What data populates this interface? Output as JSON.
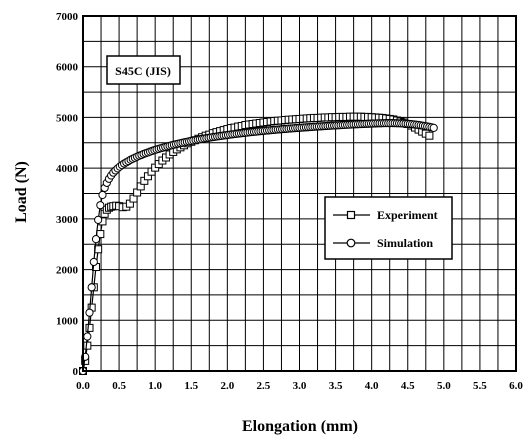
{
  "chart_data": {
    "type": "line",
    "title": "",
    "xlabel": "Elongation (mm)",
    "ylabel": "Load (N)",
    "xlim": [
      0.0,
      6.0
    ],
    "ylim": [
      0,
      7000
    ],
    "xticks": [
      "0.0",
      "0.5",
      "1.0",
      "1.5",
      "2.0",
      "2.5",
      "3.0",
      "3.5",
      "4.0",
      "4.5",
      "5.0",
      "5.5",
      "6.0"
    ],
    "yticks": [
      "0",
      "1000",
      "2000",
      "3000",
      "4000",
      "5000",
      "6000",
      "7000"
    ],
    "grid": true,
    "legend_position": "center-right",
    "annotation": "S45C (JIS)",
    "series": [
      {
        "name": "Experiment",
        "marker": "square",
        "color": "#000000",
        "x": [
          0.0,
          0.03,
          0.06,
          0.09,
          0.12,
          0.15,
          0.18,
          0.21,
          0.24,
          0.27,
          0.3,
          0.33,
          0.36,
          0.39,
          0.42,
          0.46,
          0.5,
          0.55,
          0.6,
          0.65,
          0.7,
          0.75,
          0.8,
          0.85,
          0.9,
          0.95,
          1.0,
          1.05,
          1.1,
          1.15,
          1.2,
          1.25,
          1.3,
          1.35,
          1.4,
          1.45,
          1.5,
          1.55,
          1.6,
          1.65,
          1.7,
          1.75,
          1.8,
          1.85,
          1.9,
          1.95,
          2.0,
          2.05,
          2.1,
          2.15,
          2.2,
          2.25,
          2.3,
          2.35,
          2.4,
          2.45,
          2.5,
          2.55,
          2.6,
          2.65,
          2.7,
          2.75,
          2.8,
          2.85,
          2.9,
          2.95,
          3.0,
          3.05,
          3.1,
          3.15,
          3.2,
          3.25,
          3.3,
          3.35,
          3.4,
          3.45,
          3.5,
          3.55,
          3.6,
          3.65,
          3.7,
          3.75,
          3.8,
          3.85,
          3.9,
          3.95,
          4.0,
          4.05,
          4.1,
          4.15,
          4.2,
          4.25,
          4.3,
          4.35,
          4.4,
          4.45,
          4.5,
          4.55,
          4.6,
          4.65,
          4.7,
          4.75,
          4.8
        ],
        "y": [
          0,
          200,
          500,
          850,
          1250,
          1650,
          2050,
          2400,
          2700,
          2950,
          3100,
          3180,
          3220,
          3240,
          3250,
          3260,
          3250,
          3230,
          3240,
          3300,
          3400,
          3520,
          3640,
          3750,
          3840,
          3930,
          4010,
          4080,
          4150,
          4210,
          4270,
          4320,
          4370,
          4410,
          4450,
          4490,
          4520,
          4550,
          4580,
          4610,
          4640,
          4660,
          4690,
          4710,
          4730,
          4750,
          4770,
          4790,
          4800,
          4820,
          4830,
          4850,
          4860,
          4870,
          4880,
          4890,
          4900,
          4910,
          4920,
          4930,
          4935,
          4940,
          4950,
          4955,
          4960,
          4965,
          4970,
          4975,
          4980,
          4985,
          4990,
          4990,
          4995,
          5000,
          5000,
          5005,
          5005,
          5010,
          5010,
          5010,
          5015,
          5015,
          5015,
          5015,
          5010,
          5010,
          5005,
          5000,
          4995,
          4990,
          4980,
          4970,
          4960,
          4940,
          4920,
          4900,
          4870,
          4840,
          4800,
          4760,
          4720,
          4680,
          4640
        ]
      },
      {
        "name": "Simulation",
        "marker": "circle",
        "color": "#000000",
        "x": [
          0.0,
          0.03,
          0.06,
          0.09,
          0.12,
          0.15,
          0.18,
          0.21,
          0.24,
          0.27,
          0.3,
          0.33,
          0.36,
          0.39,
          0.42,
          0.45,
          0.48,
          0.51,
          0.54,
          0.57,
          0.6,
          0.63,
          0.66,
          0.69,
          0.72,
          0.75,
          0.78,
          0.81,
          0.84,
          0.87,
          0.9,
          0.93,
          0.96,
          0.99,
          1.02,
          1.05,
          1.08,
          1.11,
          1.14,
          1.17,
          1.2,
          1.23,
          1.26,
          1.29,
          1.32,
          1.35,
          1.38,
          1.41,
          1.44,
          1.47,
          1.5,
          1.53,
          1.56,
          1.59,
          1.62,
          1.65,
          1.68,
          1.71,
          1.74,
          1.77,
          1.8,
          1.83,
          1.86,
          1.89,
          1.92,
          1.95,
          1.98,
          2.01,
          2.04,
          2.07,
          2.1,
          2.13,
          2.16,
          2.19,
          2.22,
          2.25,
          2.28,
          2.31,
          2.34,
          2.37,
          2.4,
          2.43,
          2.46,
          2.49,
          2.52,
          2.55,
          2.58,
          2.61,
          2.64,
          2.67,
          2.7,
          2.73,
          2.76,
          2.79,
          2.82,
          2.85,
          2.88,
          2.91,
          2.94,
          2.97,
          3.0,
          3.03,
          3.06,
          3.09,
          3.12,
          3.15,
          3.18,
          3.21,
          3.24,
          3.27,
          3.3,
          3.33,
          3.36,
          3.39,
          3.42,
          3.45,
          3.48,
          3.51,
          3.54,
          3.57,
          3.6,
          3.63,
          3.66,
          3.69,
          3.72,
          3.75,
          3.78,
          3.81,
          3.84,
          3.87,
          3.9,
          3.93,
          3.96,
          3.99,
          4.02,
          4.05,
          4.08,
          4.11,
          4.14,
          4.17,
          4.2,
          4.23,
          4.26,
          4.29,
          4.32,
          4.35,
          4.38,
          4.41,
          4.44,
          4.47,
          4.5,
          4.53,
          4.56,
          4.59,
          4.62,
          4.65,
          4.68,
          4.71,
          4.74,
          4.77,
          4.8,
          4.83,
          4.86
        ],
        "y": [
          0,
          280,
          680,
          1150,
          1650,
          2150,
          2600,
          2980,
          3270,
          3470,
          3610,
          3710,
          3790,
          3855,
          3910,
          3955,
          3995,
          4030,
          4060,
          4090,
          4115,
          4140,
          4165,
          4185,
          4205,
          4225,
          4245,
          4260,
          4280,
          4295,
          4310,
          4325,
          4340,
          4355,
          4368,
          4380,
          4393,
          4405,
          4417,
          4429,
          4440,
          4451,
          4462,
          4472,
          4482,
          4492,
          4501,
          4510,
          4519,
          4528,
          4537,
          4545,
          4553,
          4561,
          4569,
          4577,
          4584,
          4591,
          4598,
          4605,
          4612,
          4618,
          4625,
          4631,
          4637,
          4643,
          4649,
          4655,
          4661,
          4666,
          4672,
          4677,
          4682,
          4687,
          4692,
          4697,
          4702,
          4707,
          4711,
          4716,
          4720,
          4725,
          4729,
          4733,
          4737,
          4741,
          4745,
          4749,
          4753,
          4757,
          4761,
          4764,
          4768,
          4772,
          4775,
          4779,
          4782,
          4785,
          4789,
          4792,
          4795,
          4798,
          4801,
          4804,
          4807,
          4810,
          4813,
          4816,
          4819,
          4822,
          4824,
          4827,
          4830,
          4833,
          4835,
          4838,
          4840,
          4843,
          4845,
          4848,
          4850,
          4853,
          4855,
          4857,
          4860,
          4862,
          4864,
          4866,
          4868,
          4870,
          4872,
          4874,
          4876,
          4878,
          4880,
          4881,
          4883,
          4884,
          4885,
          4886,
          4887,
          4887,
          4887,
          4887,
          4886,
          4885,
          4884,
          4882,
          4880,
          4877,
          4874,
          4870,
          4866,
          4861,
          4856,
          4850,
          4844,
          4837,
          4830,
          4822,
          4813,
          4804,
          4794
        ]
      }
    ]
  }
}
